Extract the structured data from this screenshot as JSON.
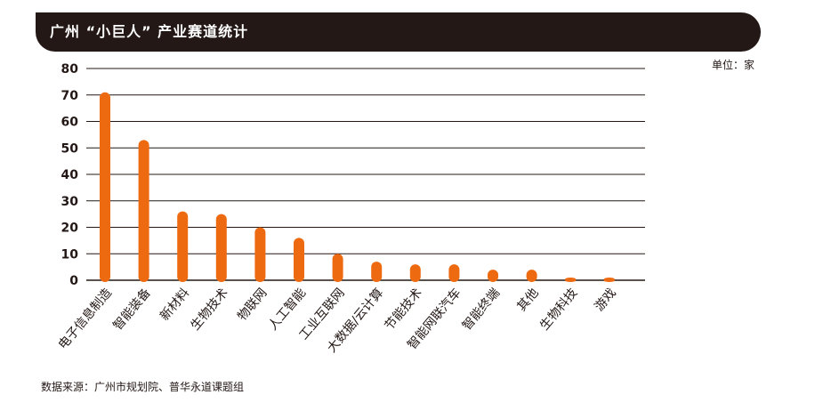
{
  "header": {
    "title": "广州 “小巨人” 产业赛道统计"
  },
  "unit_label": "单位：家",
  "source_label": "数据来源：广州市规划院、普华永道课题组",
  "colors": {
    "bar": "#ee6a10",
    "header_bg": "#231815",
    "grid": "#231815"
  },
  "chart_data": {
    "type": "bar",
    "title": "广州 “小巨人” 产业赛道统计",
    "xlabel": "",
    "ylabel": "",
    "unit": "单位：家",
    "ylim": [
      0,
      80
    ],
    "yticks": [
      0,
      10,
      20,
      30,
      40,
      50,
      60,
      70,
      80
    ],
    "grid": true,
    "categories": [
      "电子信息制造",
      "智能装备",
      "新材料",
      "生物技术",
      "物联网",
      "人工智能",
      "工业互联网",
      "大数据/云计算",
      "节能技术",
      "智能网联汽车",
      "智能终端",
      "其他",
      "生物科技",
      "游戏"
    ],
    "values": [
      71,
      53,
      26,
      25,
      20,
      16,
      10,
      7,
      6,
      6,
      4,
      4,
      1,
      1
    ]
  }
}
